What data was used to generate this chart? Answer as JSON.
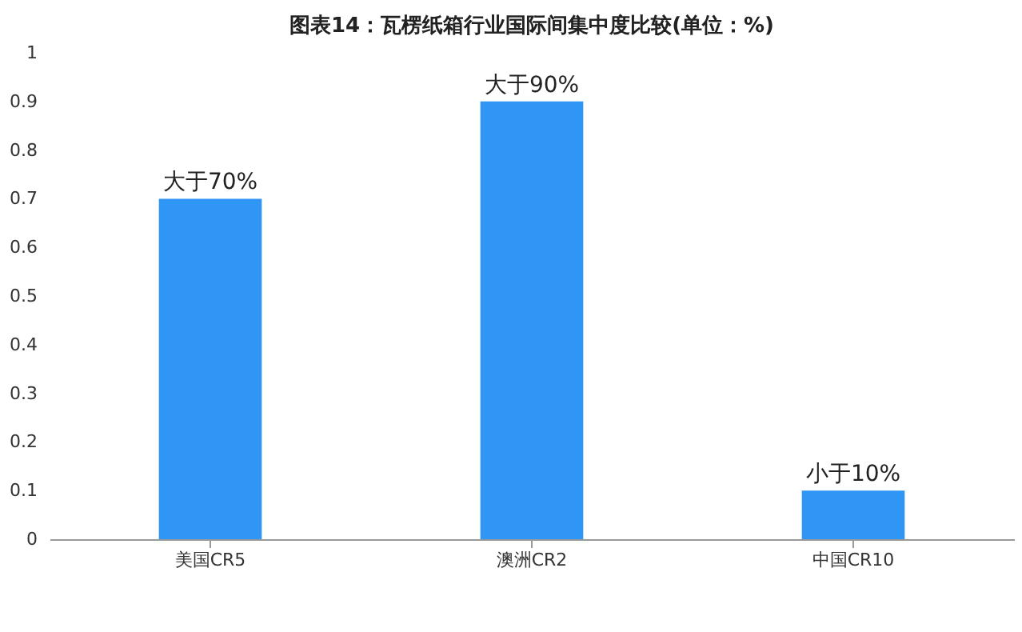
{
  "chart_data": {
    "type": "bar",
    "title": "图表14：瓦楞纸箱行业国际间集中度比较(单位：%)",
    "categories": [
      "美国CR5",
      "澳洲CR2",
      "中国CR10"
    ],
    "values": [
      0.7,
      0.9,
      0.1
    ],
    "value_labels": [
      "大于70%",
      "大于90%",
      "小于10%"
    ],
    "color": "#3096f6",
    "ylim": [
      0,
      1
    ],
    "yticks": [
      0,
      0.1,
      0.2,
      0.3,
      0.4,
      0.5,
      0.6,
      0.7,
      0.8,
      0.9,
      1
    ],
    "grid": false
  }
}
